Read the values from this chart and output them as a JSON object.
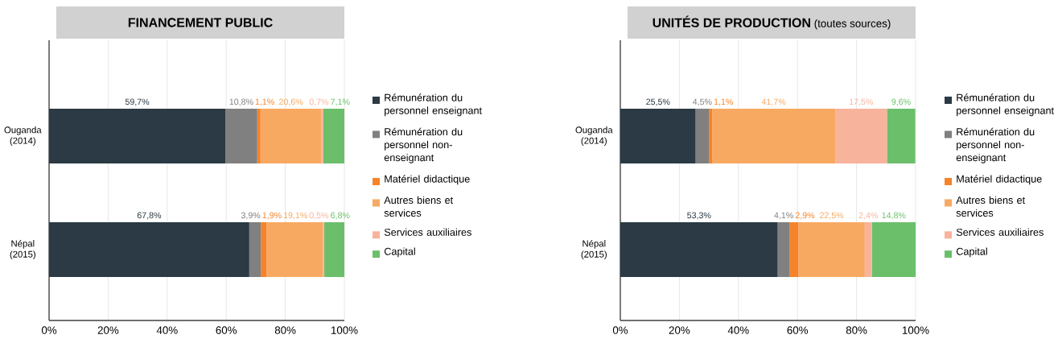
{
  "chart_data": [
    {
      "type": "bar",
      "orientation": "horizontal",
      "stacked": true,
      "title": "FINANCEMENT PUBLIC",
      "categories": [
        "Ouganda (2014)",
        "Népal (2015)"
      ],
      "xlim": [
        0,
        100
      ],
      "xticks": [
        {
          "value": 0,
          "label": "0%"
        },
        {
          "value": 20,
          "label": "20%"
        },
        {
          "value": 40,
          "label": "40%"
        },
        {
          "value": 60,
          "label": "60%"
        },
        {
          "value": 80,
          "label": "80%"
        },
        {
          "value": 100,
          "label": "100%"
        }
      ],
      "grid": "x",
      "legend": "right",
      "series": [
        {
          "name": "Rémunération du personnel enseignant",
          "color": "#2b3a44",
          "values": [
            59.7,
            67.8
          ],
          "value_labels": [
            "59,7%",
            "67,8%"
          ]
        },
        {
          "name": "Rémunération du personnel non-enseignant",
          "color": "#808080",
          "values": [
            10.8,
            3.9
          ],
          "value_labels": [
            "10,8%",
            "3,9%"
          ]
        },
        {
          "name": "Matériel didactique",
          "color": "#f5832a",
          "values": [
            1.1,
            1.9
          ],
          "value_labels": [
            "1,1%",
            "1,9%"
          ]
        },
        {
          "name": "Autres biens et services",
          "color": "#f7a962",
          "values": [
            20.6,
            19.1
          ],
          "value_labels": [
            "20,6%",
            "19,1%"
          ]
        },
        {
          "name": "Services auxiliaires",
          "color": "#f8b39c",
          "values": [
            0.7,
            0.5
          ],
          "value_labels": [
            "0,7%",
            "0,5%"
          ]
        },
        {
          "name": "Capital",
          "color": "#6bbf6a",
          "values": [
            7.1,
            6.8
          ],
          "value_labels": [
            "7,1%",
            "6,8%"
          ]
        }
      ]
    },
    {
      "type": "bar",
      "orientation": "horizontal",
      "stacked": true,
      "title": "UNITÉS DE PRODUCTION",
      "subtitle": "(toutes sources)",
      "categories": [
        "Ouganda (2014)",
        "Népal (2015)"
      ],
      "xlim": [
        0,
        100
      ],
      "xticks": [
        {
          "value": 0,
          "label": "0%"
        },
        {
          "value": 20,
          "label": "20%"
        },
        {
          "value": 40,
          "label": "40%"
        },
        {
          "value": 60,
          "label": "60%"
        },
        {
          "value": 80,
          "label": "80%"
        },
        {
          "value": 100,
          "label": "100%"
        }
      ],
      "grid": "x",
      "legend": "right",
      "series": [
        {
          "name": "Rémunération du personnel enseignant",
          "color": "#2b3a44",
          "values": [
            25.5,
            53.3
          ],
          "value_labels": [
            "25,5%",
            "53,3%"
          ]
        },
        {
          "name": "Rémunération du personnel non-enseignant",
          "color": "#808080",
          "values": [
            4.5,
            4.1
          ],
          "value_labels": [
            "4,5%",
            "4,1%"
          ]
        },
        {
          "name": "Matériel didactique",
          "color": "#f5832a",
          "values": [
            1.1,
            2.9
          ],
          "value_labels": [
            "1,1%",
            "2,9%"
          ]
        },
        {
          "name": "Autres biens et services",
          "color": "#f7a962",
          "values": [
            41.7,
            22.5
          ],
          "value_labels": [
            "41,7%",
            "22,5%"
          ]
        },
        {
          "name": "Services auxiliaires",
          "color": "#f8b39c",
          "values": [
            17.5,
            2.4
          ],
          "value_labels": [
            "17,5%",
            "2,4%"
          ]
        },
        {
          "name": "Capital",
          "color": "#6bbf6a",
          "values": [
            9.6,
            14.8
          ],
          "value_labels": [
            "9,6%",
            "14,8%"
          ]
        }
      ]
    }
  ]
}
